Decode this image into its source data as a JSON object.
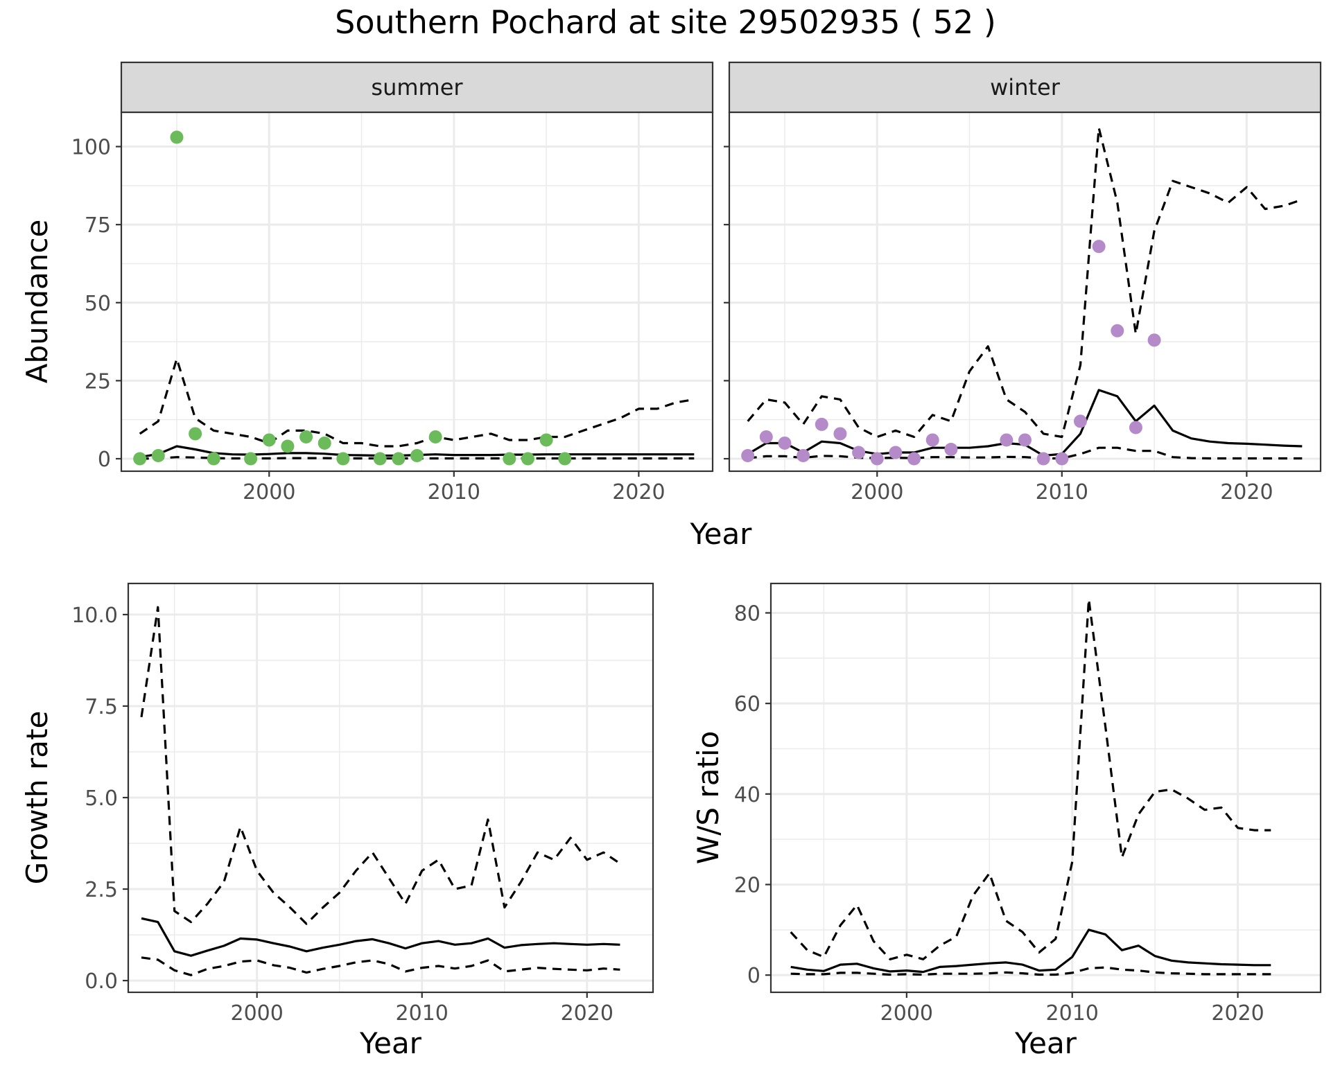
{
  "title": "Southern Pochard at site 29502935 ( 52 )",
  "colors": {
    "summer_points": "#6BBB5A",
    "winter_points": "#B48AC8",
    "lines": "#000000",
    "grid_major": "#EBEBEB",
    "strip_background": "#D9D9D9",
    "panel_border": "#333333"
  },
  "chart_data": [
    {
      "type": "line",
      "facet": "summer",
      "xlabel": "Year",
      "ylabel": "Abundance",
      "xlim": [
        1992,
        2024
      ],
      "ylim": [
        -4,
        111
      ],
      "x_ticks": [
        2000,
        2010,
        2020
      ],
      "y_ticks": [
        0,
        25,
        50,
        75,
        100
      ],
      "grid": true,
      "series": [
        {
          "role": "estimate",
          "style": "solid",
          "x": [
            1993,
            1994,
            1995,
            1996,
            1997,
            1998,
            1999,
            2000,
            2001,
            2002,
            2003,
            2004,
            2005,
            2006,
            2007,
            2008,
            2009,
            2010,
            2011,
            2012,
            2013,
            2014,
            2015,
            2016,
            2017,
            2018,
            2019,
            2020,
            2021,
            2022,
            2023
          ],
          "y": [
            0.5,
            1.5,
            4,
            3,
            1.8,
            1.4,
            1.3,
            1.5,
            1.8,
            1.8,
            1.6,
            1.2,
            1.1,
            1.0,
            1.0,
            1.2,
            1.4,
            1.2,
            1.2,
            1.2,
            1.3,
            1.3,
            1.4,
            1.4,
            1.4,
            1.4,
            1.4,
            1.4,
            1.4,
            1.4,
            1.4
          ]
        },
        {
          "role": "upper",
          "style": "dashed",
          "x": [
            1993,
            1994,
            1995,
            1996,
            1997,
            1998,
            1999,
            2000,
            2001,
            2002,
            2003,
            2004,
            2005,
            2006,
            2007,
            2008,
            2009,
            2010,
            2011,
            2012,
            2013,
            2014,
            2015,
            2016,
            2017,
            2018,
            2019,
            2020,
            2021,
            2022,
            2023
          ],
          "y": [
            8,
            12,
            32,
            13,
            9,
            8,
            7,
            5,
            9,
            9,
            8,
            5,
            5,
            4,
            4,
            5,
            7,
            6,
            7,
            8,
            6,
            6,
            7,
            7,
            9,
            11,
            13,
            16,
            16,
            18,
            19
          ]
        },
        {
          "role": "lower",
          "style": "dashed",
          "x": [
            1993,
            1994,
            1995,
            1996,
            1997,
            1998,
            1999,
            2000,
            2001,
            2002,
            2003,
            2004,
            2005,
            2006,
            2007,
            2008,
            2009,
            2010,
            2011,
            2012,
            2013,
            2014,
            2015,
            2016,
            2017,
            2018,
            2019,
            2020,
            2021,
            2022,
            2023
          ],
          "y": [
            0,
            0.1,
            0.5,
            0.4,
            0.2,
            0.1,
            0.1,
            0.1,
            0.2,
            0.2,
            0.2,
            0.1,
            0.1,
            0.1,
            0.1,
            0.1,
            0.1,
            0.1,
            0.1,
            0.1,
            0.1,
            0.1,
            0.1,
            0.1,
            0.1,
            0.1,
            0.1,
            0.1,
            0.1,
            0.1,
            0.1
          ]
        }
      ],
      "points": {
        "x": [
          1993,
          1994,
          1995,
          1996,
          1997,
          1999,
          2000,
          2001,
          2002,
          2003,
          2004,
          2006,
          2007,
          2008,
          2009,
          2013,
          2014,
          2015,
          2016
        ],
        "y": [
          0,
          1,
          103,
          8,
          0,
          0,
          6,
          4,
          7,
          5,
          0,
          0,
          0,
          1,
          7,
          0,
          0,
          6,
          0
        ]
      }
    },
    {
      "type": "line",
      "facet": "winter",
      "xlabel": "Year",
      "ylabel": "Abundance",
      "xlim": [
        1992,
        2024
      ],
      "ylim": [
        -4,
        111
      ],
      "x_ticks": [
        2000,
        2010,
        2020
      ],
      "y_ticks": [
        0,
        25,
        50,
        75,
        100
      ],
      "grid": true,
      "series": [
        {
          "role": "estimate",
          "style": "solid",
          "x": [
            1993,
            1994,
            1995,
            1996,
            1997,
            1998,
            1999,
            2000,
            2001,
            2002,
            2003,
            2004,
            2005,
            2006,
            2007,
            2008,
            2009,
            2010,
            2011,
            2012,
            2013,
            2014,
            2015,
            2016,
            2017,
            2018,
            2019,
            2020,
            2021,
            2022,
            2023
          ],
          "y": [
            1.5,
            5,
            5,
            2,
            5.5,
            5,
            2.5,
            1.5,
            2,
            2,
            3.5,
            3.5,
            3.5,
            4,
            5,
            4.5,
            1,
            1.5,
            8,
            22,
            20,
            12,
            17,
            9,
            6.5,
            5.5,
            5,
            4.8,
            4.5,
            4.2,
            4
          ]
        },
        {
          "role": "upper",
          "style": "dashed",
          "x": [
            1993,
            1994,
            1995,
            1996,
            1997,
            1998,
            1999,
            2000,
            2001,
            2002,
            2003,
            2004,
            2005,
            2006,
            2007,
            2008,
            2009,
            2010,
            2011,
            2012,
            2013,
            2014,
            2015,
            2016,
            2017,
            2018,
            2019,
            2020,
            2021,
            2022,
            2023
          ],
          "y": [
            12,
            19,
            18,
            11,
            20,
            19,
            10,
            7,
            9,
            7,
            14,
            12,
            28,
            36,
            19,
            15,
            8,
            7,
            30,
            106,
            82,
            40,
            73,
            89,
            87,
            85,
            82,
            87,
            80,
            81,
            83
          ]
        },
        {
          "role": "lower",
          "style": "dashed",
          "x": [
            1993,
            1994,
            1995,
            1996,
            1997,
            1998,
            1999,
            2000,
            2001,
            2002,
            2003,
            2004,
            2005,
            2006,
            2007,
            2008,
            2009,
            2010,
            2011,
            2012,
            2013,
            2014,
            2015,
            2016,
            2017,
            2018,
            2019,
            2020,
            2021,
            2022,
            2023
          ],
          "y": [
            0.2,
            0.8,
            0.8,
            0.3,
            0.9,
            0.8,
            0.3,
            0.2,
            0.3,
            0.2,
            0.5,
            0.5,
            0.4,
            0.4,
            0.6,
            0.5,
            0.1,
            0.1,
            1.5,
            3.5,
            3.5,
            2.5,
            2.5,
            0.5,
            0.2,
            0.1,
            0.1,
            0.1,
            0.1,
            0.1,
            0.1
          ]
        }
      ],
      "points": {
        "x": [
          1993,
          1994,
          1995,
          1996,
          1997,
          1998,
          1999,
          2000,
          2001,
          2002,
          2003,
          2004,
          2007,
          2008,
          2009,
          2010,
          2011,
          2012,
          2013,
          2014,
          2015
        ],
        "y": [
          1,
          7,
          5,
          1,
          11,
          8,
          2,
          0,
          2,
          0,
          6,
          3,
          6,
          6,
          0,
          0,
          12,
          68,
          41,
          10,
          38
        ]
      }
    },
    {
      "type": "line",
      "facet": "",
      "xlabel": "Year",
      "ylabel": "Growth rate",
      "xlim": [
        1992.2,
        2024.0
      ],
      "ylim": [
        -0.32,
        10.85
      ],
      "x_ticks": [
        2000,
        2010,
        2020
      ],
      "y_ticks": [
        0.0,
        2.5,
        5.0,
        7.5,
        10.0
      ],
      "grid": true,
      "series": [
        {
          "role": "estimate",
          "style": "solid",
          "x": [
            1993,
            1994,
            1995,
            1996,
            1997,
            1998,
            1999,
            2000,
            2001,
            2002,
            2003,
            2004,
            2005,
            2006,
            2007,
            2008,
            2009,
            2010,
            2011,
            2012,
            2013,
            2014,
            2015,
            2016,
            2017,
            2018,
            2019,
            2020,
            2021,
            2022
          ],
          "y": [
            1.7,
            1.6,
            0.8,
            0.68,
            0.82,
            0.95,
            1.15,
            1.12,
            1.02,
            0.93,
            0.8,
            0.9,
            0.98,
            1.08,
            1.13,
            1.02,
            0.88,
            1.02,
            1.08,
            0.98,
            1.02,
            1.15,
            0.9,
            0.97,
            1.0,
            1.02,
            1.0,
            0.98,
            1.0,
            0.98
          ]
        },
        {
          "role": "upper",
          "style": "dashed",
          "x": [
            1993,
            1994,
            1995,
            1996,
            1997,
            1998,
            1999,
            2000,
            2001,
            2002,
            2003,
            2004,
            2005,
            2006,
            2007,
            2008,
            2009,
            2010,
            2011,
            2012,
            2013,
            2014,
            2015,
            2016,
            2017,
            2018,
            2019,
            2020,
            2021,
            2022
          ],
          "y": [
            7.2,
            10.2,
            1.9,
            1.6,
            2.1,
            2.7,
            4.2,
            3.0,
            2.4,
            2.0,
            1.55,
            2.0,
            2.4,
            3.0,
            3.5,
            2.8,
            2.1,
            3.0,
            3.3,
            2.5,
            2.6,
            4.4,
            2.0,
            2.7,
            3.5,
            3.3,
            3.9,
            3.3,
            3.5,
            3.2
          ]
        },
        {
          "role": "lower",
          "style": "dashed",
          "x": [
            1993,
            1994,
            1995,
            1996,
            1997,
            1998,
            1999,
            2000,
            2001,
            2002,
            2003,
            2004,
            2005,
            2006,
            2007,
            2008,
            2009,
            2010,
            2011,
            2012,
            2013,
            2014,
            2015,
            2016,
            2017,
            2018,
            2019,
            2020,
            2021,
            2022
          ],
          "y": [
            0.63,
            0.57,
            0.28,
            0.15,
            0.32,
            0.4,
            0.52,
            0.55,
            0.42,
            0.35,
            0.22,
            0.32,
            0.4,
            0.5,
            0.55,
            0.45,
            0.25,
            0.35,
            0.4,
            0.33,
            0.4,
            0.55,
            0.25,
            0.3,
            0.35,
            0.32,
            0.3,
            0.28,
            0.33,
            0.3
          ]
        }
      ]
    },
    {
      "type": "line",
      "facet": "",
      "xlabel": "Year",
      "ylabel": "W/S ratio",
      "xlim": [
        1991.8,
        2025.0
      ],
      "ylim": [
        -3.8,
        86.5
      ],
      "x_ticks": [
        2000,
        2010,
        2020
      ],
      "y_ticks": [
        0,
        20,
        40,
        60,
        80
      ],
      "grid": true,
      "series": [
        {
          "role": "estimate",
          "style": "solid",
          "x": [
            1993,
            1994,
            1995,
            1996,
            1997,
            1998,
            1999,
            2000,
            2001,
            2002,
            2003,
            2004,
            2005,
            2006,
            2007,
            2008,
            2009,
            2010,
            2011,
            2012,
            2013,
            2014,
            2015,
            2016,
            2017,
            2018,
            2019,
            2020,
            2021,
            2022
          ],
          "y": [
            1.8,
            1.2,
            0.9,
            2.3,
            2.5,
            1.5,
            0.8,
            1.0,
            0.7,
            1.8,
            2.0,
            2.3,
            2.6,
            2.8,
            2.3,
            1.0,
            1.2,
            4.0,
            10.0,
            9.0,
            5.5,
            6.5,
            4.2,
            3.2,
            2.8,
            2.6,
            2.4,
            2.3,
            2.2,
            2.2
          ]
        },
        {
          "role": "upper",
          "style": "dashed",
          "x": [
            1993,
            1994,
            1995,
            1996,
            1997,
            1998,
            1999,
            2000,
            2001,
            2002,
            2003,
            2004,
            2005,
            2006,
            2007,
            2008,
            2009,
            2010,
            2011,
            2012,
            2013,
            2014,
            2015,
            2016,
            2017,
            2018,
            2019,
            2020,
            2021,
            2022
          ],
          "y": [
            9.5,
            5.5,
            4.0,
            11.0,
            15.5,
            7.5,
            3.5,
            4.5,
            3.5,
            6.5,
            8.5,
            17.5,
            22.5,
            12.0,
            9.5,
            5.0,
            8.0,
            25.0,
            83.0,
            55.0,
            26.0,
            35.5,
            40.5,
            41.0,
            39.0,
            36.5,
            37.0,
            32.5,
            32.0,
            32.0
          ]
        },
        {
          "role": "lower",
          "style": "dashed",
          "x": [
            1993,
            1994,
            1995,
            1996,
            1997,
            1998,
            1999,
            2000,
            2001,
            2002,
            2003,
            2004,
            2005,
            2006,
            2007,
            2008,
            2009,
            2010,
            2011,
            2012,
            2013,
            2014,
            2015,
            2016,
            2017,
            2018,
            2019,
            2020,
            2021,
            2022
          ],
          "y": [
            0.3,
            0.2,
            0.2,
            0.5,
            0.5,
            0.3,
            0.1,
            0.2,
            0.1,
            0.3,
            0.3,
            0.3,
            0.4,
            0.6,
            0.4,
            0.1,
            0.1,
            0.5,
            1.5,
            1.7,
            1.2,
            1.0,
            0.6,
            0.4,
            0.3,
            0.2,
            0.2,
            0.2,
            0.2,
            0.2
          ]
        }
      ]
    }
  ]
}
